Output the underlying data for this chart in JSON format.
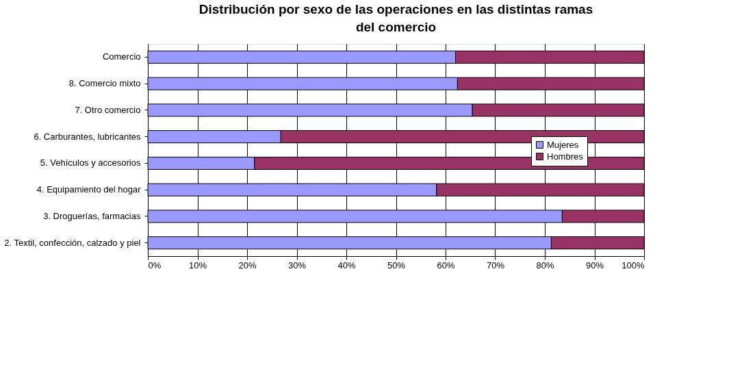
{
  "chart_data": {
    "type": "bar",
    "title": "Distribución por sexo de las operaciones en las distintas ramas del comercio",
    "orientation": "horizontal",
    "stacked": true,
    "categories": [
      "Comercio",
      "8. Comercio mixto",
      "7. Otro comercio",
      "6. Carburantes, lubricantes",
      "5. Vehículos y accesorios",
      "4. Equipamiento del hogar",
      "3. Droguerías, farmacias",
      "2. Textil, confección, calzado y piel"
    ],
    "series": [
      {
        "name": "Mujeres",
        "color": "#9999ff",
        "values": [
          62.0,
          62.4,
          65.4,
          26.8,
          21.5,
          58.2,
          83.5,
          81.3
        ]
      },
      {
        "name": "Hombres",
        "color": "#993366",
        "values": [
          38.0,
          37.6,
          34.6,
          73.2,
          78.5,
          41.8,
          16.5,
          18.7
        ]
      }
    ],
    "xlim": [
      0,
      100
    ],
    "xticks": [
      {
        "value": 0,
        "label": "0%"
      },
      {
        "value": 10,
        "label": "10%"
      },
      {
        "value": 20,
        "label": "20%"
      },
      {
        "value": 30,
        "label": "30%"
      },
      {
        "value": 40,
        "label": "40%"
      },
      {
        "value": 50,
        "label": "50%"
      },
      {
        "value": 60,
        "label": "60%"
      },
      {
        "value": 70,
        "label": "70%"
      },
      {
        "value": 80,
        "label": "80%"
      },
      {
        "value": 90,
        "label": "90%"
      },
      {
        "value": 100,
        "label": "100%"
      }
    ],
    "grid": "x",
    "legend": "right"
  }
}
